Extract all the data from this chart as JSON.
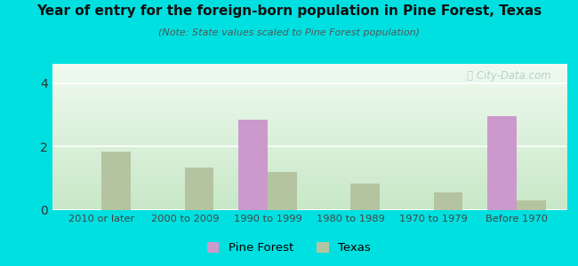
{
  "title": "Year of entry for the foreign-born population in Pine Forest, Texas",
  "subtitle": "(Note: State values scaled to Pine Forest population)",
  "categories": [
    "2010 or later",
    "2000 to 2009",
    "1990 to 1999",
    "1980 to 1989",
    "1970 to 1979",
    "Before 1970"
  ],
  "pine_forest_values": [
    0,
    0,
    2.85,
    0,
    0,
    2.95
  ],
  "texas_values": [
    1.85,
    1.35,
    1.2,
    0.85,
    0.55,
    0.3
  ],
  "pine_forest_color": "#cc99cc",
  "texas_color": "#b5c4a0",
  "background_outer": "#00e0e0",
  "gradient_top": "#f0faf0",
  "gradient_bottom": "#c8e8c8",
  "ylim": [
    0,
    4.6
  ],
  "yticks": [
    0,
    2,
    4
  ],
  "bar_width": 0.35,
  "legend_labels": [
    "Pine Forest",
    "Texas"
  ],
  "watermark": "Ⓜ City-Data.com"
}
